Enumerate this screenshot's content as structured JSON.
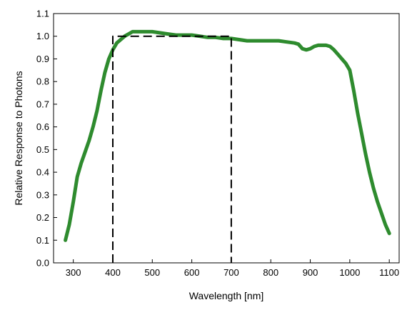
{
  "chart_data": {
    "type": "line",
    "title": "",
    "xlabel": "Wavelength [nm]",
    "ylabel": "Relative Response to Photons",
    "xlim": [
      250,
      1125
    ],
    "ylim": [
      0,
      1.1
    ],
    "xticks": [
      300,
      400,
      500,
      600,
      700,
      800,
      900,
      1000,
      1100
    ],
    "yticks": [
      0.0,
      0.1,
      0.2,
      0.3,
      0.4,
      0.5,
      0.6,
      0.7,
      0.8,
      0.9,
      1.0,
      1.1
    ],
    "ytick_labels": [
      "0.0",
      "0.1",
      "0.2",
      "0.3",
      "0.4",
      "0.5",
      "0.6",
      "0.7",
      "0.8",
      "0.9",
      "1.0",
      "1.1"
    ],
    "xtick_labels": [
      "300",
      "400",
      "500",
      "600",
      "700",
      "800",
      "900",
      "1000",
      "1100"
    ],
    "grid": false,
    "series": [
      {
        "color": "#2e8b2e",
        "style": "solid",
        "x": [
          280,
          290,
          300,
          310,
          320,
          330,
          340,
          350,
          360,
          370,
          380,
          390,
          400,
          410,
          420,
          430,
          440,
          450,
          460,
          470,
          480,
          490,
          500,
          520,
          540,
          560,
          580,
          600,
          620,
          640,
          660,
          680,
          700,
          720,
          740,
          760,
          780,
          800,
          820,
          840,
          860,
          870,
          880,
          890,
          900,
          910,
          920,
          930,
          940,
          950,
          960,
          970,
          980,
          990,
          1000,
          1010,
          1020,
          1030,
          1040,
          1050,
          1060,
          1070,
          1080,
          1090,
          1100
        ],
        "y": [
          0.1,
          0.17,
          0.27,
          0.38,
          0.44,
          0.49,
          0.54,
          0.6,
          0.67,
          0.76,
          0.84,
          0.9,
          0.94,
          0.97,
          0.985,
          1.0,
          1.01,
          1.02,
          1.02,
          1.02,
          1.02,
          1.02,
          1.02,
          1.015,
          1.01,
          1.005,
          1.005,
          1.005,
          1.0,
          0.995,
          0.995,
          0.99,
          0.99,
          0.985,
          0.98,
          0.98,
          0.98,
          0.98,
          0.98,
          0.975,
          0.97,
          0.965,
          0.945,
          0.94,
          0.945,
          0.955,
          0.96,
          0.96,
          0.96,
          0.955,
          0.94,
          0.92,
          0.9,
          0.88,
          0.85,
          0.76,
          0.66,
          0.57,
          0.48,
          0.4,
          0.33,
          0.27,
          0.22,
          0.17,
          0.13
        ]
      },
      {
        "color": "#000000",
        "style": "dashed",
        "x": [
          400,
          400,
          700,
          700
        ],
        "y": [
          0.0,
          1.0,
          1.0,
          0.0
        ]
      }
    ]
  }
}
